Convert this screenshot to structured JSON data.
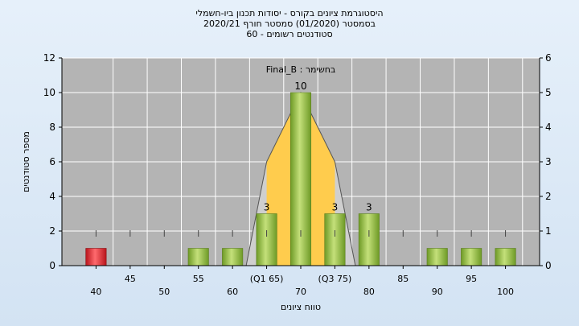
{
  "chart_data": {
    "type": "bar",
    "title_lines": [
      "היסטוגרמת ציונים בקורס - יסודות תכנון ביו-חשמלי",
      "בסמסטר  (01/2020)  סמסטר חורף  2020/21",
      "סטודנטים רשומים - 60"
    ],
    "xlabel": "טווח ציונים",
    "ylabel": "מספר סטודנטים",
    "annotation": "Final_B : בחשימר",
    "ylim": [
      0,
      12
    ],
    "yticks": [
      0,
      2,
      4,
      6,
      8,
      10,
      12
    ],
    "y2lim": [
      0,
      6
    ],
    "y2ticks": [
      0,
      1,
      2,
      3,
      4,
      5,
      6
    ],
    "xlim": [
      35,
      105
    ],
    "x_tick_labels": [
      {
        "x": 40,
        "label": "40",
        "row": 2
      },
      {
        "x": 45,
        "label": "45",
        "row": 1
      },
      {
        "x": 50,
        "label": "50",
        "row": 2
      },
      {
        "x": 55,
        "label": "55",
        "row": 1
      },
      {
        "x": 60,
        "label": "60",
        "row": 2
      },
      {
        "x": 65,
        "label": "(Q1 65)",
        "row": 1
      },
      {
        "x": 70,
        "label": "70",
        "row": 2
      },
      {
        "x": 75,
        "label": "(Q3 75)",
        "row": 1
      },
      {
        "x": 80,
        "label": "80",
        "row": 2
      },
      {
        "x": 85,
        "label": "85",
        "row": 1
      },
      {
        "x": 90,
        "label": "90",
        "row": 2
      },
      {
        "x": 95,
        "label": "95",
        "row": 1
      },
      {
        "x": 100,
        "label": "100",
        "row": 2
      }
    ],
    "categories": [
      40,
      45,
      50,
      55,
      60,
      65,
      70,
      75,
      80,
      85,
      90,
      95,
      100
    ],
    "values": [
      1,
      0,
      0,
      1,
      1,
      3,
      10,
      3,
      3,
      0,
      1,
      1,
      1
    ],
    "bar_labels": [
      "",
      "",
      "",
      "",
      "",
      "3",
      "10",
      "3",
      "3",
      "",
      "",
      "",
      ""
    ],
    "quartiles": {
      "q1": 65,
      "q3": 75
    },
    "colors": {
      "plot_background": "#b4b4b4",
      "bar_green": "#8dbb3a",
      "bar_red": "#e0343a",
      "iqr_band": "#ffcc4d",
      "tail_band": "#cfcfcf"
    },
    "grid": true
  }
}
